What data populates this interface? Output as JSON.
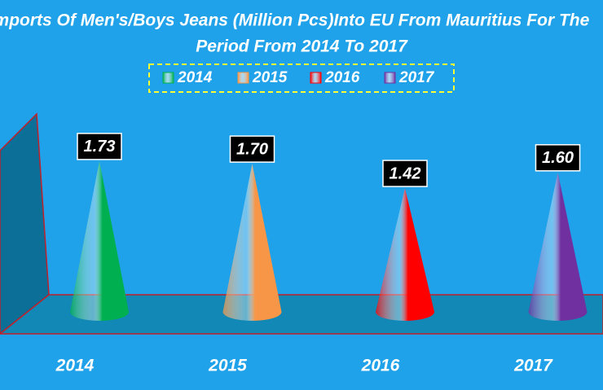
{
  "chart_data": {
    "type": "cone",
    "title": [
      "Imports Of Men's/Boys Jeans (Million Pcs)Into EU From Mauritius For The",
      "Period From 2014 To 2017"
    ],
    "categories": [
      "2014",
      "2015",
      "2016",
      "2017"
    ],
    "series": [
      {
        "name": "2014",
        "color": "#00b050",
        "values": [
          1.73,
          null,
          null,
          null
        ],
        "value_labels": [
          "1.73",
          null,
          null,
          null
        ]
      },
      {
        "name": "2015",
        "color": "#f79646",
        "values": [
          null,
          1.7,
          null,
          null
        ],
        "value_labels": [
          null,
          "1.70",
          null,
          null
        ]
      },
      {
        "name": "2016",
        "color": "#ff0000",
        "values": [
          null,
          null,
          1.42,
          null
        ],
        "value_labels": [
          null,
          null,
          "1.42",
          null
        ]
      },
      {
        "name": "2017",
        "color": "#7030a0",
        "values": [
          null,
          null,
          null,
          1.6
        ],
        "value_labels": [
          null,
          null,
          null,
          "1.60"
        ]
      }
    ],
    "ylim": [
      0,
      2
    ]
  }
}
